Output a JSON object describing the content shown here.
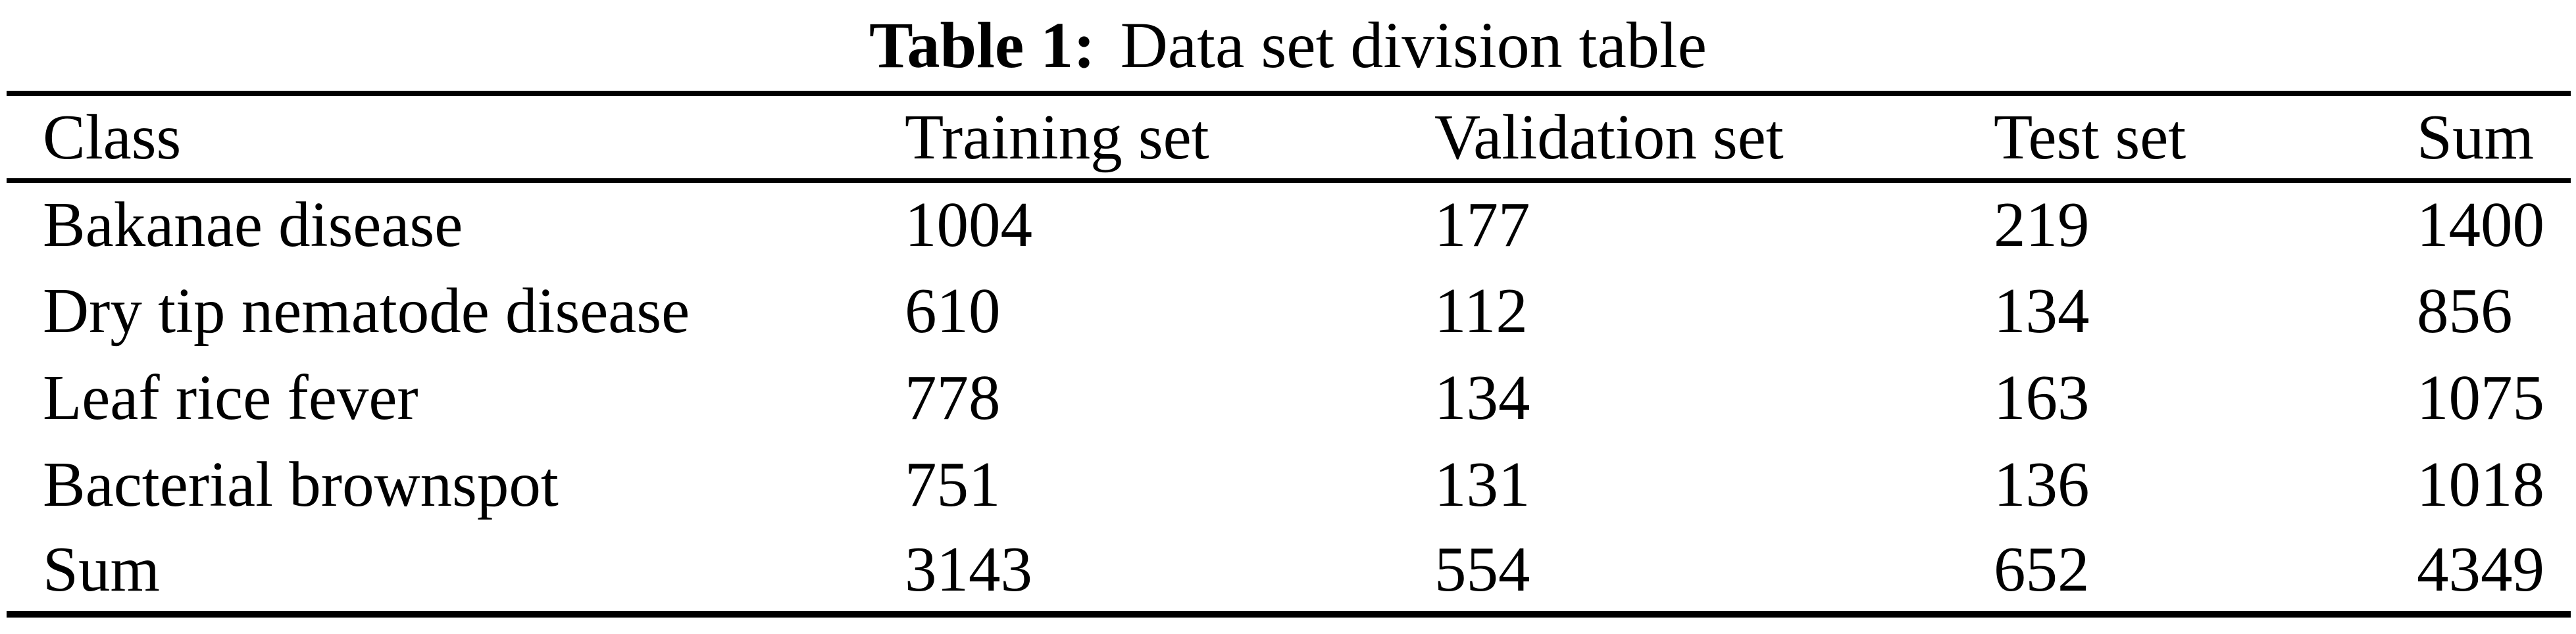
{
  "page": {
    "background_color": "#ffffff",
    "text_color": "#000000",
    "rule_color": "#000000"
  },
  "caption": {
    "label": "Table 1:",
    "title": "Data set division table"
  },
  "table": {
    "headers": [
      "Class",
      "Training set",
      "Validation set",
      "Test set",
      "Sum"
    ],
    "rows": [
      [
        "Bakanae disease",
        "1004",
        "177",
        "219",
        "1400"
      ],
      [
        "Dry tip nematode disease",
        "610",
        "112",
        "134",
        "856"
      ],
      [
        "Leaf rice fever",
        "778",
        "134",
        "163",
        "1075"
      ],
      [
        "Bacterial brownspot",
        "751",
        "131",
        "136",
        "1018"
      ],
      [
        "Sum",
        "3143",
        "554",
        "652",
        "4349"
      ]
    ]
  }
}
